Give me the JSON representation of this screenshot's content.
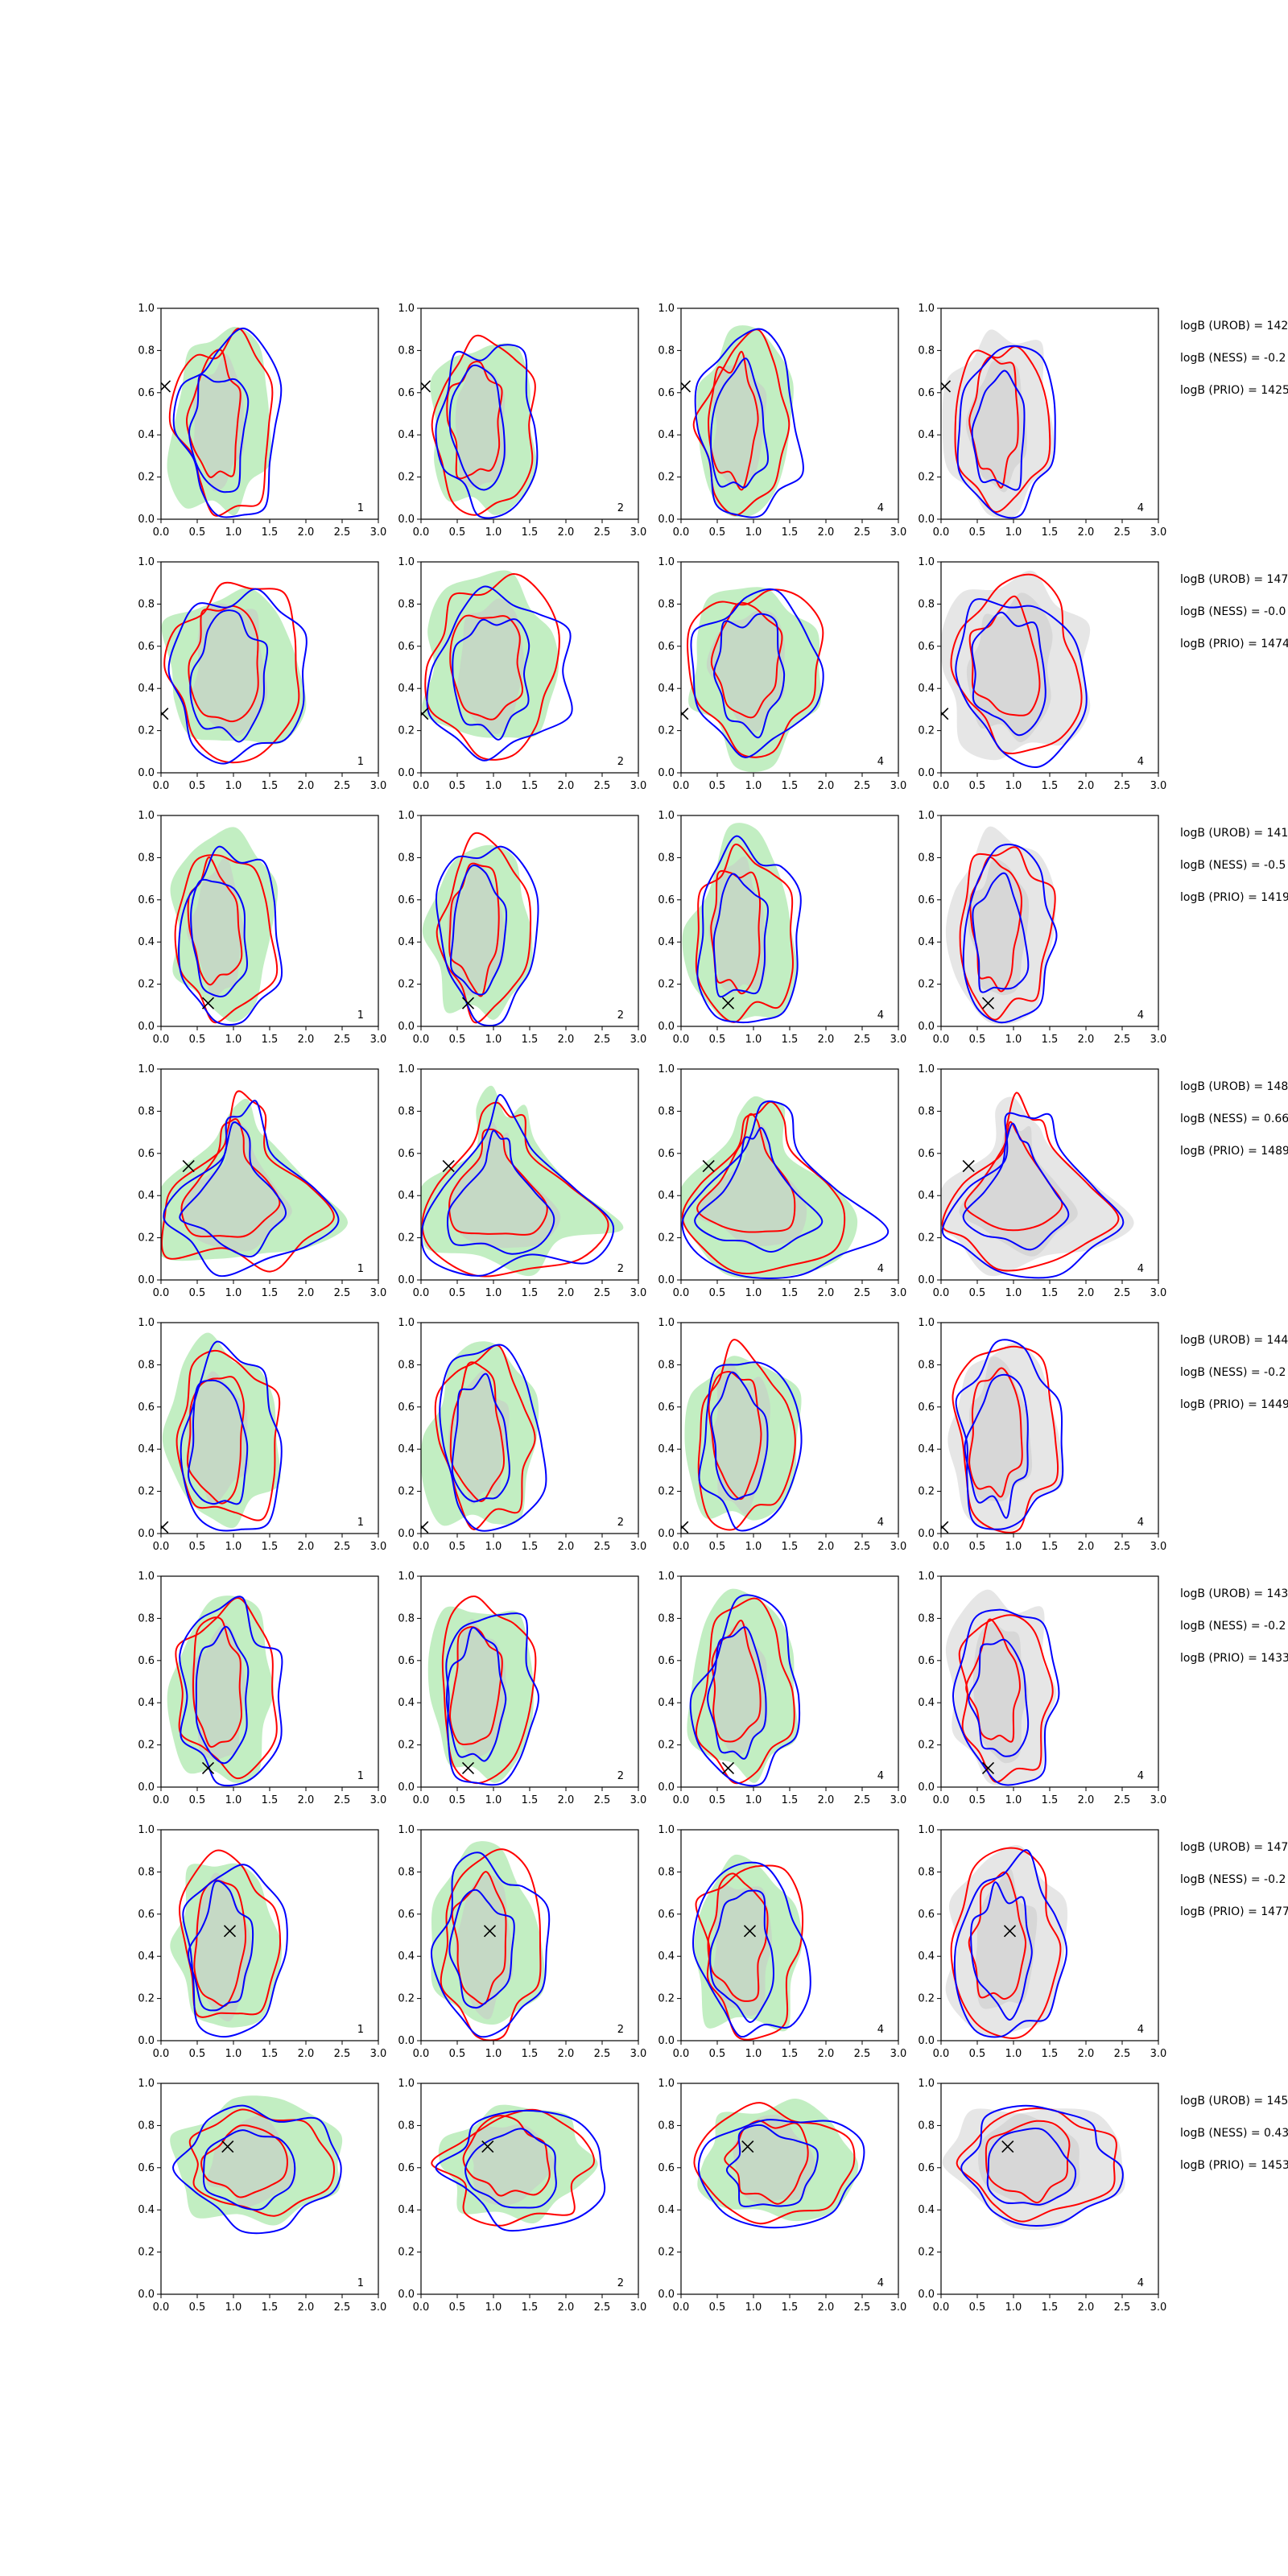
{
  "colors": {
    "green_fill": "#90e090",
    "grey_fill": "#c8c8c8",
    "blue_line": "#0000ff",
    "red_line": "#ff0000",
    "axes": "#000000"
  },
  "chart_data": {
    "type": "contour",
    "layout": "8 rows x 4 columns",
    "xlim": [
      0,
      3
    ],
    "ylim": [
      0,
      1
    ],
    "xticks": [
      "0.0",
      "0.5",
      "1.0",
      "1.5",
      "2.0",
      "2.5",
      "3.0"
    ],
    "yticks": [
      "0.0",
      "0.2",
      "0.4",
      "0.6",
      "0.8",
      "1.0"
    ],
    "panel_labels": [
      "1",
      "2",
      "4",
      "4"
    ],
    "panel_fills": [
      "green",
      "green",
      "green",
      "grey"
    ],
    "rows": [
      {
        "marker": [
          0.05,
          0.63
        ],
        "annotations": [
          "logB (UROB) = 142",
          "logB (NESS) = -0.2",
          "logB (PRIO) = 1425"
        ],
        "contours": {
          "shape": "vertical",
          "cx": 0.85,
          "cy": 0.45,
          "rx": 0.7,
          "ry": 0.42
        }
      },
      {
        "marker": [
          0.02,
          0.28
        ],
        "annotations": [
          "logB (UROB) = 147",
          "logB (NESS) = -0.0",
          "logB (PRIO) = 1474"
        ],
        "contours": {
          "shape": "broad",
          "cx": 1.0,
          "cy": 0.5,
          "rx": 0.95,
          "ry": 0.4
        }
      },
      {
        "marker": [
          0.65,
          0.11
        ],
        "annotations": [
          "logB (UROB) = 141",
          "logB (NESS) = -0.5",
          "logB (PRIO) = 1419"
        ],
        "contours": {
          "shape": "vertical",
          "cx": 0.85,
          "cy": 0.45,
          "rx": 0.7,
          "ry": 0.42
        }
      },
      {
        "marker": [
          0.38,
          0.54
        ],
        "annotations": [
          "logB (UROB) = 148",
          "logB (NESS) = 0.66",
          "logB (PRIO) = 1489"
        ],
        "contours": {
          "shape": "lshape",
          "cx": 1.1,
          "cy": 0.45,
          "rx": 1.0,
          "ry": 0.4
        }
      },
      {
        "marker": [
          0.02,
          0.03
        ],
        "annotations": [
          "logB (UROB) = 144",
          "logB (NESS) = -0.2",
          "logB (PRIO) = 1449"
        ],
        "contours": {
          "shape": "vertical",
          "cx": 0.85,
          "cy": 0.45,
          "rx": 0.75,
          "ry": 0.43
        }
      },
      {
        "marker": [
          0.65,
          0.09
        ],
        "annotations": [
          "logB (UROB) = 143",
          "logB (NESS) = -0.2",
          "logB (PRIO) = 1433"
        ],
        "contours": {
          "shape": "vertical",
          "cx": 0.85,
          "cy": 0.45,
          "rx": 0.7,
          "ry": 0.42
        }
      },
      {
        "marker": [
          0.95,
          0.52
        ],
        "annotations": [
          "logB (UROB) = 147",
          "logB (NESS) = -0.2",
          "logB (PRIO) = 1477"
        ],
        "contours": {
          "shape": "vertical",
          "cx": 0.9,
          "cy": 0.45,
          "rx": 0.75,
          "ry": 0.42
        }
      },
      {
        "marker": [
          0.92,
          0.7
        ],
        "annotations": [
          "logB (UROB) = 145",
          "logB (NESS) = 0.43",
          "logB (PRIO) = 1453"
        ],
        "contours": {
          "shape": "horizontal",
          "cx": 1.3,
          "cy": 0.62,
          "rx": 1.1,
          "ry": 0.3
        }
      }
    ]
  }
}
